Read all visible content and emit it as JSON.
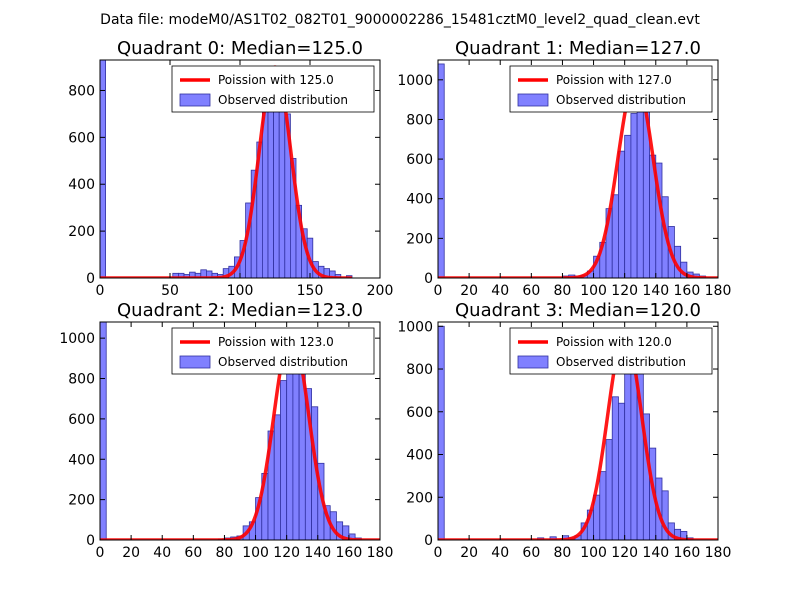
{
  "suptitle": "Data file: modeM0/AS1T02_082T01_9000002286_15481cztM0_level2_quad_clean.evt",
  "colors": {
    "bar_fill": "#8080ff",
    "bar_edge": "#3030a0",
    "curve": "#ff0000",
    "axis": "#000000"
  },
  "chart_data": [
    {
      "type": "bar",
      "title": "Quadrant 0: Median=125.0",
      "xlim": [
        0,
        200
      ],
      "ylim": [
        0,
        930
      ],
      "xticks": [
        0,
        50,
        100,
        150,
        200
      ],
      "yticks": [
        0,
        200,
        400,
        600,
        800
      ],
      "bin_width": 4,
      "bins": [
        [
          0,
          930
        ],
        [
          52,
          20
        ],
        [
          56,
          20
        ],
        [
          60,
          15
        ],
        [
          64,
          25
        ],
        [
          68,
          20
        ],
        [
          72,
          35
        ],
        [
          76,
          30
        ],
        [
          80,
          20
        ],
        [
          84,
          15
        ],
        [
          88,
          40
        ],
        [
          92,
          50
        ],
        [
          96,
          90
        ],
        [
          100,
          160
        ],
        [
          104,
          320
        ],
        [
          108,
          460
        ],
        [
          112,
          580
        ],
        [
          116,
          760
        ],
        [
          120,
          890
        ],
        [
          124,
          800
        ],
        [
          128,
          860
        ],
        [
          132,
          700
        ],
        [
          136,
          510
        ],
        [
          140,
          310
        ],
        [
          144,
          210
        ],
        [
          148,
          170
        ],
        [
          152,
          70
        ],
        [
          156,
          50
        ],
        [
          160,
          40
        ],
        [
          164,
          30
        ],
        [
          168,
          15
        ],
        [
          176,
          10
        ]
      ],
      "legend": [
        {
          "label": "Poission with 125.0",
          "kind": "line"
        },
        {
          "label": "Observed distribution",
          "kind": "patch"
        }
      ],
      "poisson": {
        "mean": 125.0,
        "peak": 900,
        "x_range": [
          0,
          180
        ]
      }
    },
    {
      "type": "bar",
      "title": "Quadrant 1: Median=127.0",
      "xlim": [
        0,
        180
      ],
      "ylim": [
        0,
        1100
      ],
      "xticks": [
        0,
        20,
        40,
        60,
        80,
        100,
        120,
        140,
        160,
        180
      ],
      "yticks": [
        0,
        200,
        400,
        600,
        800,
        1000
      ],
      "bin_width": 4,
      "bins": [
        [
          0,
          1080
        ],
        [
          80,
          10
        ],
        [
          84,
          15
        ],
        [
          88,
          10
        ],
        [
          92,
          15
        ],
        [
          96,
          35
        ],
        [
          100,
          110
        ],
        [
          104,
          180
        ],
        [
          108,
          350
        ],
        [
          112,
          420
        ],
        [
          116,
          640
        ],
        [
          120,
          720
        ],
        [
          124,
          830
        ],
        [
          128,
          1040
        ],
        [
          132,
          920
        ],
        [
          136,
          620
        ],
        [
          140,
          580
        ],
        [
          144,
          410
        ],
        [
          148,
          260
        ],
        [
          152,
          160
        ],
        [
          156,
          80
        ],
        [
          160,
          30
        ],
        [
          164,
          20
        ],
        [
          168,
          10
        ]
      ],
      "legend": [
        {
          "label": "Poission with 127.0",
          "kind": "line"
        },
        {
          "label": "Observed distribution",
          "kind": "patch"
        }
      ],
      "poisson": {
        "mean": 127.0,
        "peak": 1000,
        "x_range": [
          0,
          180
        ]
      }
    },
    {
      "type": "bar",
      "title": "Quadrant 2: Median=123.0",
      "xlim": [
        0,
        180
      ],
      "ylim": [
        0,
        1080
      ],
      "xticks": [
        0,
        20,
        40,
        60,
        80,
        100,
        120,
        140,
        160,
        180
      ],
      "yticks": [
        0,
        200,
        400,
        600,
        800,
        1000
      ],
      "bin_width": 4,
      "bins": [
        [
          0,
          1080
        ],
        [
          76,
          5
        ],
        [
          80,
          10
        ],
        [
          84,
          15
        ],
        [
          88,
          20
        ],
        [
          92,
          70
        ],
        [
          96,
          90
        ],
        [
          100,
          210
        ],
        [
          104,
          330
        ],
        [
          108,
          540
        ],
        [
          112,
          620
        ],
        [
          116,
          790
        ],
        [
          120,
          980
        ],
        [
          124,
          950
        ],
        [
          128,
          910
        ],
        [
          132,
          750
        ],
        [
          136,
          660
        ],
        [
          140,
          380
        ],
        [
          144,
          170
        ],
        [
          148,
          140
        ],
        [
          152,
          90
        ],
        [
          156,
          70
        ],
        [
          160,
          30
        ],
        [
          164,
          10
        ]
      ],
      "legend": [
        {
          "label": "Poission with 123.0",
          "kind": "line"
        },
        {
          "label": "Observed distribution",
          "kind": "patch"
        }
      ],
      "poisson": {
        "mean": 123.0,
        "peak": 1030,
        "x_range": [
          0,
          180
        ]
      }
    },
    {
      "type": "bar",
      "title": "Quadrant 3: Median=120.0",
      "xlim": [
        0,
        180
      ],
      "ylim": [
        0,
        1020
      ],
      "xticks": [
        0,
        20,
        40,
        60,
        80,
        100,
        120,
        140,
        160,
        180
      ],
      "yticks": [
        0,
        200,
        400,
        600,
        800,
        1000
      ],
      "bin_width": 4,
      "bins": [
        [
          0,
          1000
        ],
        [
          64,
          10
        ],
        [
          72,
          15
        ],
        [
          80,
          20
        ],
        [
          84,
          10
        ],
        [
          88,
          20
        ],
        [
          92,
          80
        ],
        [
          96,
          140
        ],
        [
          100,
          210
        ],
        [
          104,
          320
        ],
        [
          108,
          470
        ],
        [
          112,
          670
        ],
        [
          116,
          640
        ],
        [
          120,
          900
        ],
        [
          124,
          950
        ],
        [
          128,
          790
        ],
        [
          132,
          590
        ],
        [
          136,
          430
        ],
        [
          140,
          290
        ],
        [
          144,
          230
        ],
        [
          148,
          80
        ],
        [
          152,
          50
        ],
        [
          156,
          40
        ],
        [
          160,
          10
        ]
      ],
      "legend": [
        {
          "label": "Poission with 120.0",
          "kind": "line"
        },
        {
          "label": "Observed distribution",
          "kind": "patch"
        }
      ],
      "poisson": {
        "mean": 120.0,
        "peak": 960,
        "x_range": [
          0,
          180
        ]
      }
    }
  ]
}
